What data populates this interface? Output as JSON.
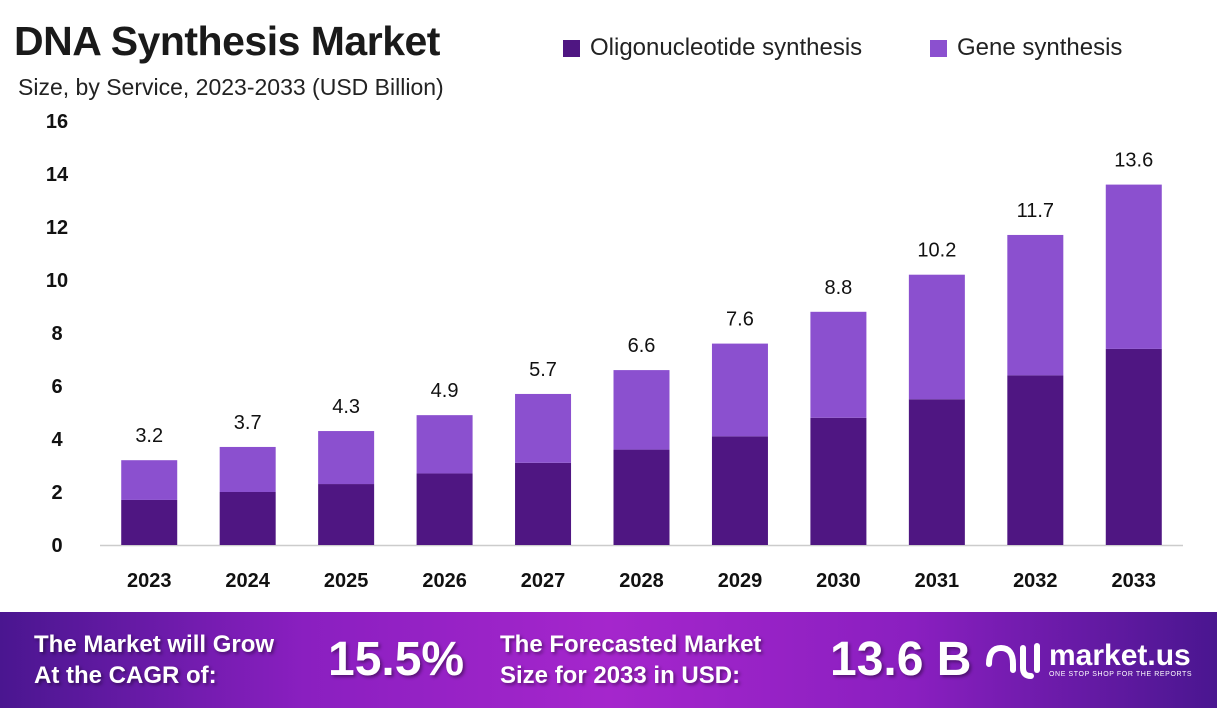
{
  "colors": {
    "oligo": "#4f1682",
    "gene": "#8b50cf",
    "footer_left": "#4a1690",
    "footer_mid": "#a526cc"
  },
  "chart_data": {
    "type": "bar",
    "stacked": true,
    "title": "DNA Synthesis Market",
    "subtitle": "Size, by Service, 2023-2033 (USD Billion)",
    "categories": [
      "2023",
      "2024",
      "2025",
      "2026",
      "2027",
      "2028",
      "2029",
      "2030",
      "2031",
      "2032",
      "2033"
    ],
    "series": [
      {
        "name": "Oligonucleotide synthesis",
        "values": [
          1.7,
          2.0,
          2.3,
          2.7,
          3.1,
          3.6,
          4.1,
          4.8,
          5.5,
          6.4,
          7.4
        ]
      },
      {
        "name": "Gene synthesis",
        "values": [
          1.5,
          1.7,
          2.0,
          2.2,
          2.6,
          3.0,
          3.5,
          4.0,
          4.7,
          5.3,
          6.2
        ]
      }
    ],
    "totals": [
      "3.2",
      "3.7",
      "4.3",
      "4.9",
      "5.7",
      "6.6",
      "7.6",
      "8.8",
      "10.2",
      "11.7",
      "13.6"
    ],
    "ylim": [
      0,
      16
    ],
    "yticks": [
      "0",
      "2",
      "4",
      "6",
      "8",
      "10",
      "12",
      "14",
      "16"
    ],
    "xlabel": "",
    "ylabel": "",
    "grid": false,
    "legend": "top-right"
  },
  "footer": {
    "cagr_label_1": "The Market will Grow",
    "cagr_label_2": "At the CAGR of:",
    "cagr_value": "15.5%",
    "forecast_label_1": "The Forecasted Market",
    "forecast_label_2": "Size for 2033 in USD:",
    "forecast_value": "13.6 B",
    "logo_text": "market.us",
    "logo_tagline": "ONE STOP SHOP FOR THE REPORTS"
  }
}
